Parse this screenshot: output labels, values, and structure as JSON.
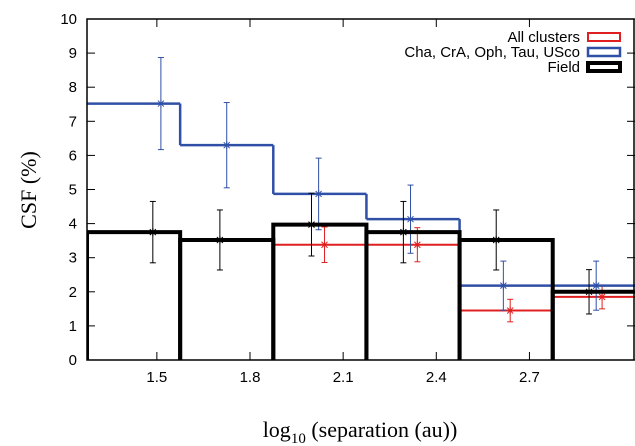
{
  "chart_data": {
    "type": "step-histogram",
    "ylabel": "CSF (%)",
    "xlabel": [
      "log",
      "10",
      " (separation (au))"
    ],
    "bins": [
      1.275,
      1.575,
      1.875,
      2.175,
      2.475,
      2.775,
      3.075
    ],
    "xlim": [
      1.275,
      3.04
    ],
    "ylim": [
      0,
      10
    ],
    "xticks": [
      1.5,
      1.8,
      2.1,
      2.4,
      2.7
    ],
    "yticks": [
      0,
      1,
      2,
      3,
      4,
      5,
      6,
      7,
      8,
      9,
      10
    ],
    "legend": "upper right",
    "series": [
      {
        "name": "All clusters",
        "color": "#e02020",
        "style": "steps",
        "width": 2,
        "values": [
          null,
          null,
          3.38,
          3.38,
          1.45,
          1.85
        ],
        "errors": [
          null,
          null,
          0.52,
          0.5,
          0.33,
          0.35
        ],
        "err_x": [
          null,
          null,
          2.04,
          2.339,
          2.638,
          2.934
        ]
      },
      {
        "name": "Cha, CrA, Oph, Tau, USco",
        "color": "#3050a8",
        "style": "steps",
        "width": 2.5,
        "values": [
          7.52,
          6.3,
          4.87,
          4.13,
          2.18,
          2.18
        ],
        "errors": [
          1.35,
          1.25,
          1.05,
          1.0,
          0.72,
          0.72
        ],
        "err_x": [
          1.513,
          1.725,
          2.021,
          2.317,
          2.616,
          2.915
        ]
      },
      {
        "name": "Field",
        "color": "#000000",
        "style": "boxes",
        "width": 4,
        "values": [
          3.75,
          3.52,
          3.97,
          3.75,
          3.52,
          2.0
        ],
        "errors": [
          0.9,
          0.88,
          0.92,
          0.9,
          0.88,
          0.65
        ],
        "err_x": [
          1.487,
          1.703,
          1.998,
          2.294,
          2.593,
          2.892
        ]
      }
    ]
  }
}
